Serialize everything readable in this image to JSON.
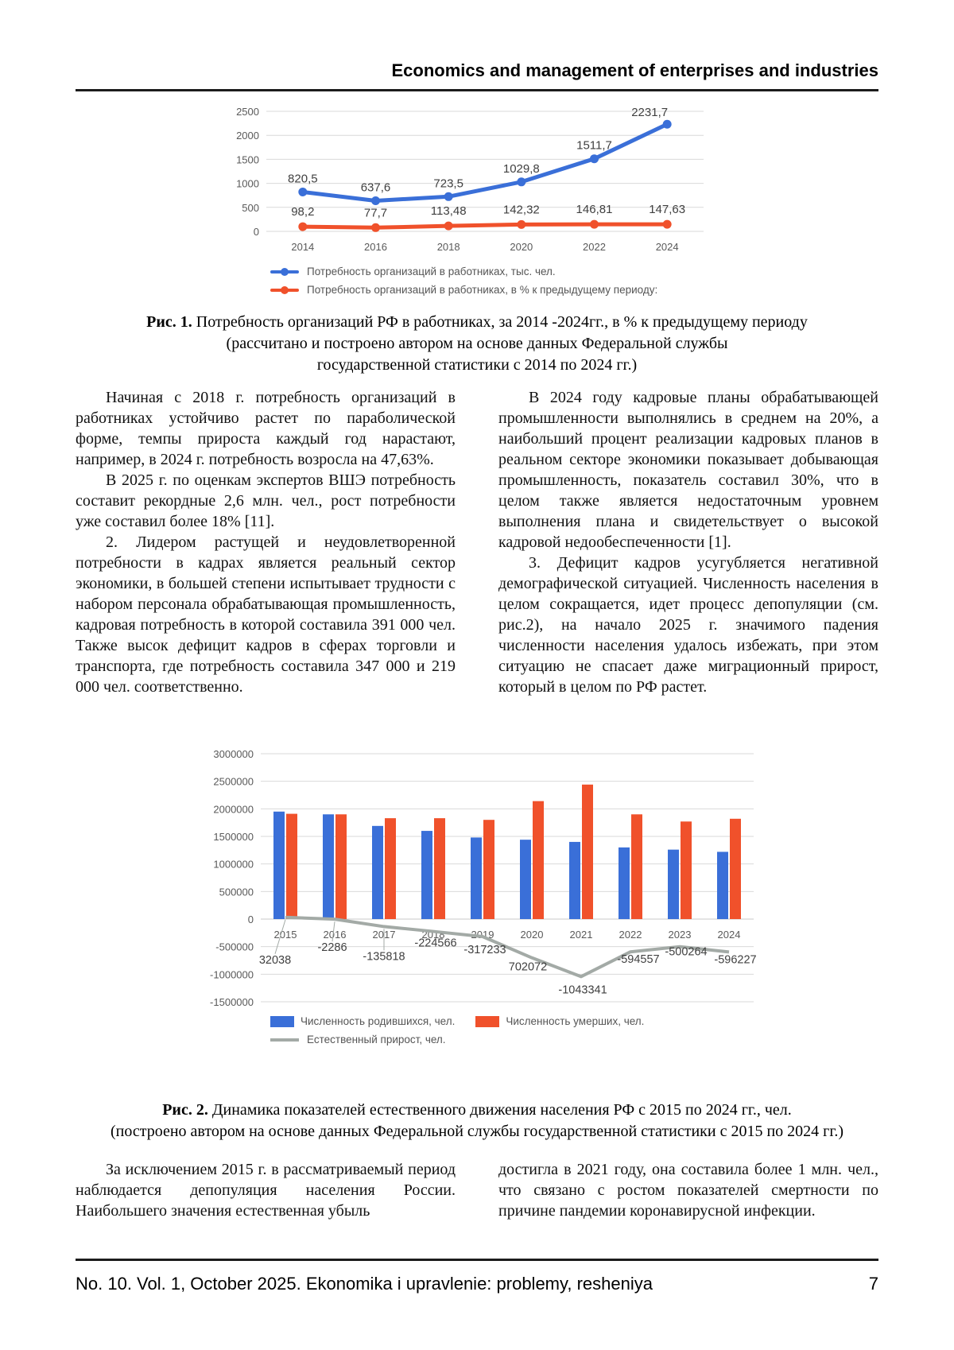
{
  "header": {
    "title": "Economics and management of enterprises and industries"
  },
  "figure1": {
    "caption_label": "Рис. 1.",
    "caption_text": "Потребность организаций РФ в работниках, за 2014 -2024гг., в % к предыдущему периоду",
    "caption_line2": "(рассчитано и построено автором на основе данных Федеральной службы",
    "caption_line3": "государственной статистики с 2014 по 2024 гг.)"
  },
  "figure2": {
    "caption_label": "Рис. 2.",
    "caption_text": "Динамика показателей естественного движения населения РФ с 2015 по 2024 гг., чел.",
    "caption_line2": "(построено автором на основе данных Федеральной службы государственной статистики с 2015 по 2024 гг.)"
  },
  "body": {
    "left_column": [
      "Начиная с 2018 г. потребность организаций в работниках устойчиво растет по параболической форме, темпы прироста каждый год нарастают, например, в 2024 г. потребность возросла на 47,63%.",
      "В 2025 г. по оценкам экспертов ВШЭ потребность составит рекордные 2,6 млн. чел., рост потребности уже составил более 18% [11].",
      "2. Лидером растущей и неудовлетворенной потребности в кадрах является реальный сектор экономики, в большей степени испытывает трудности с набором персонала обрабатывающая промышленность, кадровая потребность в которой составила 391 000 чел. Также высок дефицит кадров в сферах торговли и транспорта, где потребность составила 347 000 и 219 000 чел. соответственно."
    ],
    "right_column": [
      "В 2024 году кадровые планы обрабатывающей промышленности выполнялись в среднем на 20%, а наибольший процент реализации кадровых планов в реальном секторе экономики показывает добывающая промышленность, показатель составил 30%, что в целом также является недостаточным уровнем выполнения плана и свидетельствует о высокой кадровой недообеспеченности [1].",
      "3. Дефицит кадров усугубляется негативной демографической ситуацией. Численность населения в целом сокращается, идет процесс депопуляции (см. рис.2), на начало 2025 г. значимого падения численности населения удалось избежать, при этом ситуацию не спасает даже миграционный прирост, который в целом по РФ растет."
    ],
    "bottom_left": [
      "За исключением 2015 г. в рассматриваемый период наблюдается депопуляция населения России. Наибольшего значения естественная убыль"
    ],
    "bottom_right": [
      "достигла в 2021 году, она составила более 1 млн. чел., что связано с ростом показателей смертности по причине пандемии коронавирусной инфекции."
    ]
  },
  "footer": {
    "left": "No. 10. Vol. 1, October 2025. Ekonomika i upravlenie: problemy, resheniya",
    "page_number": "7"
  },
  "chart_data": [
    {
      "id": "chart1",
      "type": "line",
      "title": "Потребность организаций РФ в работниках, 2014–2024",
      "categories": [
        "2014",
        "2016",
        "2018",
        "2020",
        "2022",
        "2024"
      ],
      "series": [
        {
          "name": "Потребность организаций в работниках, тыс. чел.",
          "color": "#3A6FD8",
          "values": [
            820.5,
            637.6,
            723.5,
            1029.8,
            1511.7,
            2231.7
          ],
          "labels": [
            "820,5",
            "637,6",
            "723,5",
            "1029,8",
            "1511,7",
            "2231,7"
          ],
          "label_offsets": [
            [
              0,
              -12
            ],
            [
              0,
              -12
            ],
            [
              0,
              -12
            ],
            [
              0,
              -12
            ],
            [
              0,
              -12
            ],
            [
              -22,
              -10
            ]
          ]
        },
        {
          "name": "Потребность организаций в работниках, в % к предыдущему периоду:",
          "color": "#F0512B",
          "values": [
            98.2,
            77.7,
            113.48,
            142.32,
            146.81,
            147.63
          ],
          "labels": [
            "98,2",
            "77,7",
            "113,48",
            "142,32",
            "146,81",
            "147,63"
          ],
          "label_offsets": [
            [
              0,
              -14
            ],
            [
              0,
              -14
            ],
            [
              0,
              -14
            ],
            [
              0,
              -14
            ],
            [
              0,
              -14
            ],
            [
              0,
              -14
            ]
          ]
        }
      ],
      "ylim": [
        0,
        2500
      ],
      "yticks": [
        2500,
        2000,
        1500,
        1000,
        500,
        0
      ],
      "grid": true,
      "legend_position": "bottom-left"
    },
    {
      "id": "chart2",
      "type": "bar",
      "title": "Динамика показателей естественного движения населения РФ, 2015–2024",
      "categories": [
        "2015",
        "2016",
        "2017",
        "2018",
        "2019",
        "2020",
        "2021",
        "2022",
        "2023",
        "2024"
      ],
      "series": [
        {
          "name": "Численность родившихся, чел.",
          "kind": "bar",
          "color": "#3A6FD8",
          "values": [
            1950000,
            1900000,
            1690000,
            1600000,
            1480000,
            1440000,
            1400000,
            1300000,
            1260000,
            1220000
          ]
        },
        {
          "name": "Численность умерших, чел.",
          "kind": "bar",
          "color": "#F0512B",
          "values": [
            1910000,
            1900000,
            1830000,
            1830000,
            1800000,
            2140000,
            2440000,
            1900000,
            1770000,
            1820000
          ]
        },
        {
          "name": "Естественный прирост, чел.",
          "kind": "line",
          "color": "#A3AAA6",
          "values": [
            32038,
            -2286,
            -135818,
            -224566,
            -317233,
            -702072,
            -1043341,
            -594557,
            -500264,
            -596227
          ],
          "labels": [
            "32038",
            "-2286",
            "-135818",
            "-224566",
            "-317233",
            "702072",
            "-1043341",
            "-594557",
            "-500264",
            "-596227"
          ],
          "label_offsets": [
            [
              -13,
              58
            ],
            [
              -3,
              40
            ],
            [
              0,
              42
            ],
            [
              3,
              19
            ],
            [
              3,
              21
            ],
            [
              -5,
              16
            ],
            [
              2,
              21
            ],
            [
              10,
              14
            ],
            [
              8,
              11
            ],
            [
              8,
              14
            ]
          ],
          "leader_indices": [
            0,
            1,
            2
          ]
        }
      ],
      "ylim": [
        -1500000,
        3000000
      ],
      "yticks": [
        3000000,
        2500000,
        2000000,
        1500000,
        1000000,
        500000,
        0,
        -500000,
        -1000000,
        -1500000
      ],
      "grid": true,
      "legend_position": "bottom"
    }
  ]
}
